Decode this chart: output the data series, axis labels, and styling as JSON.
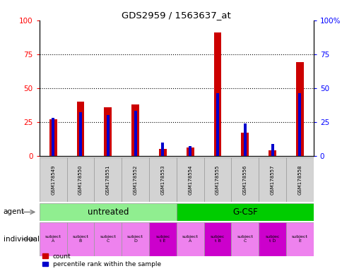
{
  "title": "GDS2959 / 1563637_at",
  "samples": [
    "GSM178549",
    "GSM178550",
    "GSM178551",
    "GSM178552",
    "GSM178553",
    "GSM178554",
    "GSM178555",
    "GSM178556",
    "GSM178557",
    "GSM178558"
  ],
  "count_values": [
    27,
    40,
    36,
    38,
    5,
    6,
    91,
    17,
    4,
    69
  ],
  "percentile_values": [
    28,
    32,
    30,
    33,
    10,
    7,
    46,
    24,
    9,
    46
  ],
  "agent_groups": [
    {
      "label": "untreated",
      "start": 0,
      "end": 5,
      "color": "#90ee90"
    },
    {
      "label": "G-CSF",
      "start": 5,
      "end": 10,
      "color": "#00cc00"
    }
  ],
  "individual_labels": [
    "subject\nA",
    "subject\nB",
    "subject\nC",
    "subject\nD",
    "subjec\nt E",
    "subject\nA",
    "subjec\nt B",
    "subject\nC",
    "subjec\nt D",
    "subject\nE"
  ],
  "individual_colors": [
    "#ee82ee",
    "#ee82ee",
    "#ee82ee",
    "#ee82ee",
    "#cc00cc",
    "#ee82ee",
    "#cc00cc",
    "#ee82ee",
    "#cc00cc",
    "#ee82ee"
  ],
  "bar_color_red": "#cc0000",
  "bar_color_blue": "#0000cc",
  "ylim_max": 100,
  "yticks": [
    0,
    25,
    50,
    75,
    100
  ],
  "grid_values": [
    25,
    50,
    75
  ],
  "red_bar_width": 0.28,
  "blue_bar_width": 0.1
}
